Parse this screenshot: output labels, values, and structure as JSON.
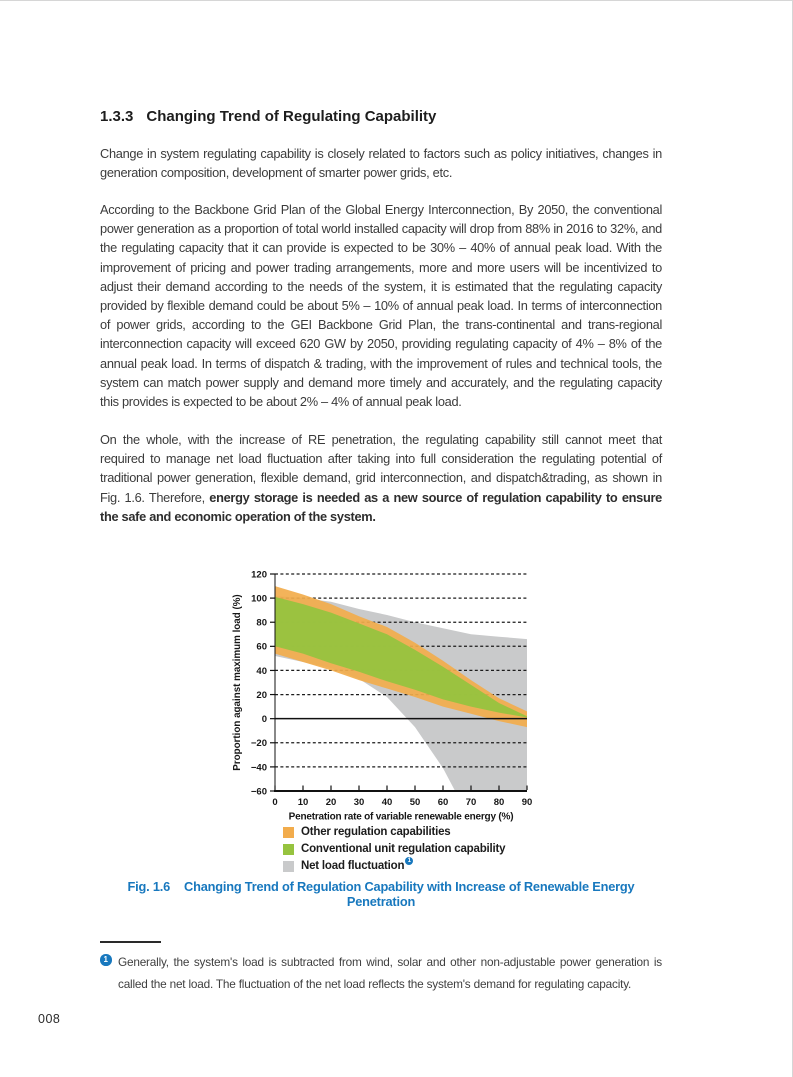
{
  "colors": {
    "accent_blue": "#1878be",
    "orange": "#F2AC4C",
    "green": "#96C33F",
    "gray": "#C9CACB",
    "axis_black": "#1c1c1c"
  },
  "page": {
    "number": "008",
    "heading": {
      "number": "1.3.3",
      "title": "Changing Trend of Regulating Capability"
    },
    "paragraphs": {
      "p1": "Change in system regulating capability is closely related to factors such as policy initiatives, changes in generation composition, development of smarter power grids, etc.",
      "p2": "According to the Backbone Grid Plan of the Global Energy Interconnection, By 2050, the conventional power generation as a proportion of total world installed capacity will drop from 88% in 2016 to 32%, and the regulating capacity that it can provide is expected to be 30% – 40% of annual peak load. With the improvement of pricing and power trading arrangements, more and more users will be incentivized to adjust their demand according to the needs of the system, it is estimated that the regulating capacity provided by flexible demand could be about 5% – 10% of annual peak load. In terms of interconnection of power grids, according to the GEI Backbone Grid Plan, the trans-continental and trans-regional interconnection capacity will exceed 620 GW by 2050, providing regulating capacity of 4% – 8% of the annual peak load. In terms of dispatch & trading, with the improvement of rules and technical tools, the system can match power supply and demand more timely and accurately, and the regulating capacity this provides is expected to be about 2% – 4% of annual peak load.",
      "p3_normal": "On the whole, with the increase of RE penetration, the regulating capability still cannot meet that required to manage net load fluctuation after taking into full consideration the regulating potential of traditional power generation, flexible demand, grid interconnection, and dispatch&trading, as shown in Fig. 1.6. Therefore, ",
      "p3_bold": "energy storage is needed as a new source of regulation capability to ensure the safe and economic operation of the system."
    },
    "figure": {
      "caption_label": "Fig. 1.6",
      "caption_text": "Changing Trend of Regulation Capability with Increase of Renewable Energy Penetration"
    },
    "footnote": {
      "marker": "1",
      "text": "Generally, the system's load is subtracted from wind, solar and other non-adjustable power generation is called the net load. The fluctuation of the net load reflects the system's demand for regulating capacity."
    }
  },
  "chart_data": {
    "type": "area",
    "title": "",
    "xlabel": "Penetration rate of variable renewable energy (%)",
    "ylabel": "Proportion against maximum load (%)",
    "xlim": [
      0,
      90
    ],
    "ylim": [
      -60,
      120
    ],
    "grid": "dashed horizontal",
    "legend_position": "bottom-left",
    "x_ticks": [
      0,
      10,
      20,
      30,
      40,
      50,
      60,
      70,
      80,
      90
    ],
    "x_tick_labels": [
      "0",
      "10",
      "20",
      "30",
      "40",
      "50",
      "60",
      "70",
      "80",
      "90"
    ],
    "y_ticks": [
      120,
      100,
      80,
      60,
      40,
      20,
      0,
      -20,
      -40,
      -60
    ],
    "y_tick_labels": [
      "120",
      "100",
      "80",
      "60",
      "40",
      "20",
      "0",
      "−20",
      "−40",
      "−60"
    ],
    "dashed_gridlines": [
      120,
      100,
      80,
      60,
      40,
      20,
      -20,
      -40
    ],
    "zero_line": 0,
    "x": [
      0,
      10,
      20,
      30,
      40,
      50,
      60,
      70,
      80,
      90
    ],
    "series": [
      {
        "name": "Net load fluctuation",
        "color": "#C9CACB",
        "upper": [
          102,
          100,
          97,
          91,
          86,
          80,
          75,
          70,
          68,
          66
        ],
        "lower": [
          52,
          47,
          42,
          33,
          18,
          -7,
          -41,
          -85,
          -110,
          -125
        ]
      },
      {
        "name": "Other regulation capabilities",
        "color": "#F2AC4C",
        "upper": [
          110,
          103,
          95,
          85,
          76,
          63,
          48,
          32,
          17,
          6
        ],
        "lower": [
          54,
          47,
          40,
          32,
          25,
          18,
          10,
          4,
          -2,
          -7
        ]
      },
      {
        "name": "Conventional unit regulation capability",
        "color": "#96C33F",
        "upper": [
          101,
          95,
          88,
          79,
          70,
          57,
          43,
          28,
          13,
          2
        ],
        "lower": [
          60,
          54,
          46,
          39,
          31,
          24,
          16,
          10,
          5,
          1
        ]
      }
    ],
    "legend": [
      {
        "label": "Other regulation capabilities",
        "color": "#F2AC4C"
      },
      {
        "label": "Conventional unit regulation capability",
        "color": "#96C33F"
      },
      {
        "label": "Net load fluctuation",
        "color": "#C9CACB",
        "footnote_marker": "1"
      }
    ]
  }
}
